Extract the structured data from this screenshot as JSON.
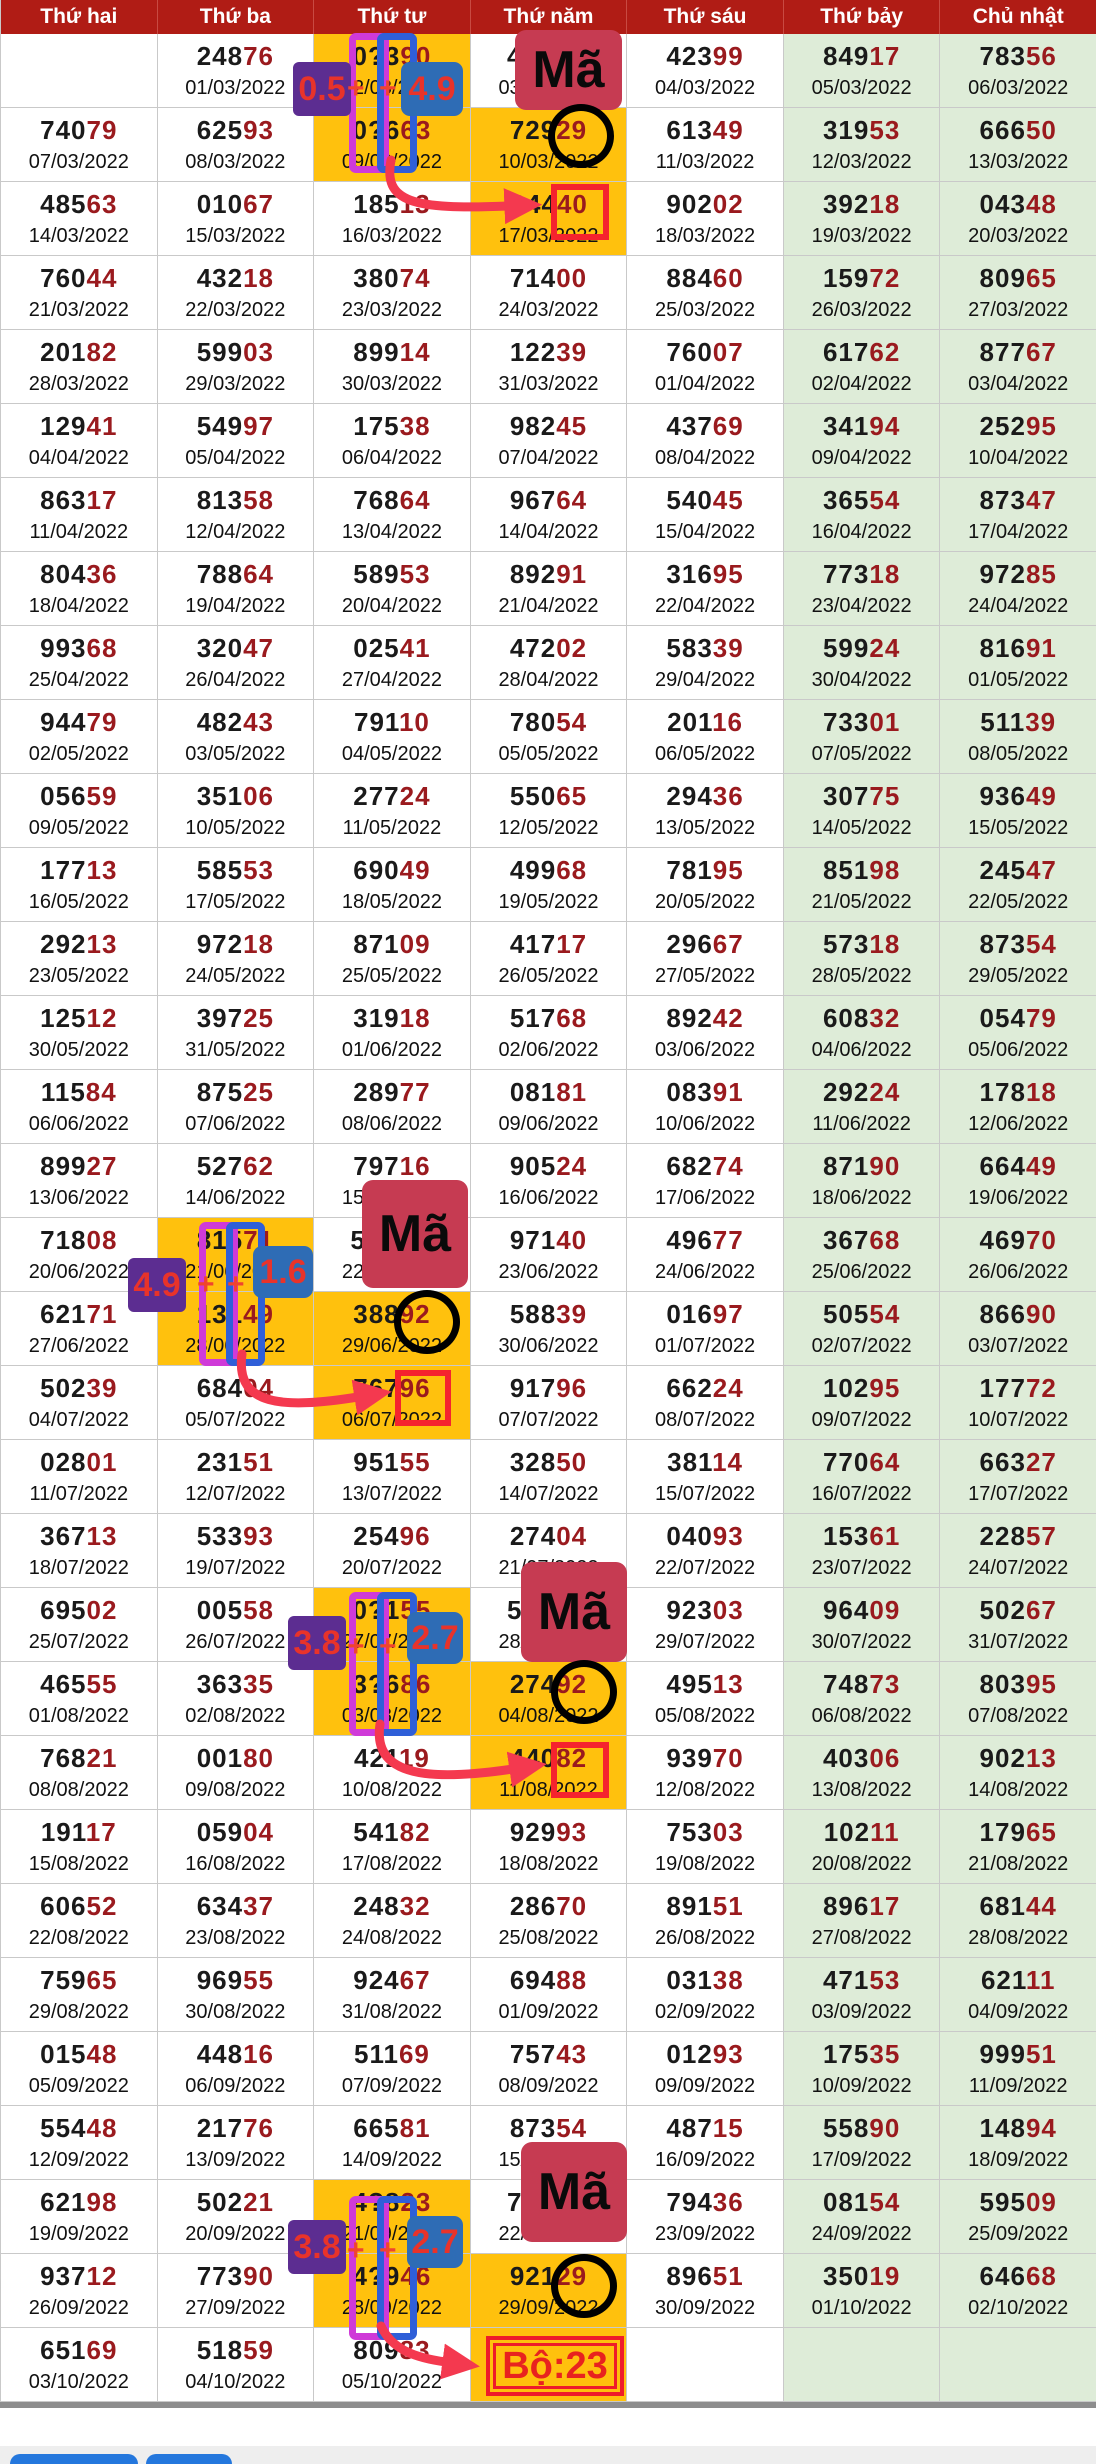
{
  "header": {
    "days": [
      "Thứ hai",
      "Thứ ba",
      "Thứ tư",
      "Thứ năm",
      "Thứ sáu",
      "Thứ bảy",
      "Chủ nhật"
    ]
  },
  "table": {
    "note_unreadable_digit": "?",
    "rows": [
      [
        null,
        [
          "24876",
          "01/03/2022"
        ],
        [
          "0?390",
          "02/03/2022",
          1
        ],
        [
          "4????",
          "03/03/2022"
        ],
        [
          "42399",
          "04/03/2022"
        ],
        [
          "84917",
          "05/03/2022"
        ],
        [
          "78356",
          "06/03/2022"
        ]
      ],
      [
        [
          "74079",
          "07/03/2022"
        ],
        [
          "62593",
          "08/03/2022"
        ],
        [
          "0?663",
          "09/03/2022",
          1
        ],
        [
          "72929",
          "10/03/2022",
          1
        ],
        [
          "61349",
          "11/03/2022"
        ],
        [
          "31953",
          "12/03/2022"
        ],
        [
          "66650",
          "13/03/2022"
        ]
      ],
      [
        [
          "48563",
          "14/03/2022"
        ],
        [
          "01067",
          "15/03/2022"
        ],
        [
          "18513",
          "16/03/2022"
        ],
        [
          "?4440",
          "17/03/2022",
          1
        ],
        [
          "90202",
          "18/03/2022"
        ],
        [
          "39218",
          "19/03/2022"
        ],
        [
          "04348",
          "20/03/2022"
        ]
      ],
      [
        [
          "76044",
          "21/03/2022"
        ],
        [
          "43218",
          "22/03/2022"
        ],
        [
          "38074",
          "23/03/2022"
        ],
        [
          "71400",
          "24/03/2022"
        ],
        [
          "88460",
          "25/03/2022"
        ],
        [
          "15972",
          "26/03/2022"
        ],
        [
          "80965",
          "27/03/2022"
        ]
      ],
      [
        [
          "20182",
          "28/03/2022"
        ],
        [
          "59903",
          "29/03/2022"
        ],
        [
          "89914",
          "30/03/2022"
        ],
        [
          "12239",
          "31/03/2022"
        ],
        [
          "76007",
          "01/04/2022"
        ],
        [
          "61762",
          "02/04/2022"
        ],
        [
          "87767",
          "03/04/2022"
        ]
      ],
      [
        [
          "12941",
          "04/04/2022"
        ],
        [
          "54997",
          "05/04/2022"
        ],
        [
          "17538",
          "06/04/2022"
        ],
        [
          "98245",
          "07/04/2022"
        ],
        [
          "43769",
          "08/04/2022"
        ],
        [
          "34194",
          "09/04/2022"
        ],
        [
          "25295",
          "10/04/2022"
        ]
      ],
      [
        [
          "86317",
          "11/04/2022"
        ],
        [
          "81358",
          "12/04/2022"
        ],
        [
          "76864",
          "13/04/2022"
        ],
        [
          "96764",
          "14/04/2022"
        ],
        [
          "54045",
          "15/04/2022"
        ],
        [
          "36554",
          "16/04/2022"
        ],
        [
          "87347",
          "17/04/2022"
        ]
      ],
      [
        [
          "80436",
          "18/04/2022"
        ],
        [
          "78864",
          "19/04/2022"
        ],
        [
          "58953",
          "20/04/2022"
        ],
        [
          "89291",
          "21/04/2022"
        ],
        [
          "31695",
          "22/04/2022"
        ],
        [
          "77318",
          "23/04/2022"
        ],
        [
          "97285",
          "24/04/2022"
        ]
      ],
      [
        [
          "99368",
          "25/04/2022"
        ],
        [
          "32047",
          "26/04/2022"
        ],
        [
          "02541",
          "27/04/2022"
        ],
        [
          "47202",
          "28/04/2022"
        ],
        [
          "58339",
          "29/04/2022"
        ],
        [
          "59924",
          "30/04/2022"
        ],
        [
          "81691",
          "01/05/2022"
        ]
      ],
      [
        [
          "94479",
          "02/05/2022"
        ],
        [
          "48243",
          "03/05/2022"
        ],
        [
          "79110",
          "04/05/2022"
        ],
        [
          "78054",
          "05/05/2022"
        ],
        [
          "20116",
          "06/05/2022"
        ],
        [
          "73301",
          "07/05/2022"
        ],
        [
          "51139",
          "08/05/2022"
        ]
      ],
      [
        [
          "05659",
          "09/05/2022"
        ],
        [
          "35106",
          "10/05/2022"
        ],
        [
          "27724",
          "11/05/2022"
        ],
        [
          "55065",
          "12/05/2022"
        ],
        [
          "29436",
          "13/05/2022"
        ],
        [
          "30775",
          "14/05/2022"
        ],
        [
          "93649",
          "15/05/2022"
        ]
      ],
      [
        [
          "17713",
          "16/05/2022"
        ],
        [
          "58553",
          "17/05/2022"
        ],
        [
          "69049",
          "18/05/2022"
        ],
        [
          "49968",
          "19/05/2022"
        ],
        [
          "78195",
          "20/05/2022"
        ],
        [
          "85198",
          "21/05/2022"
        ],
        [
          "24547",
          "22/05/2022"
        ]
      ],
      [
        [
          "29213",
          "23/05/2022"
        ],
        [
          "97218",
          "24/05/2022"
        ],
        [
          "87109",
          "25/05/2022"
        ],
        [
          "41717",
          "26/05/2022"
        ],
        [
          "29667",
          "27/05/2022"
        ],
        [
          "57318",
          "28/05/2022"
        ],
        [
          "87354",
          "29/05/2022"
        ]
      ],
      [
        [
          "12512",
          "30/05/2022"
        ],
        [
          "39725",
          "31/05/2022"
        ],
        [
          "31918",
          "01/06/2022"
        ],
        [
          "51768",
          "02/06/2022"
        ],
        [
          "89242",
          "03/06/2022"
        ],
        [
          "60832",
          "04/06/2022"
        ],
        [
          "05479",
          "05/06/2022"
        ]
      ],
      [
        [
          "11584",
          "06/06/2022"
        ],
        [
          "87525",
          "07/06/2022"
        ],
        [
          "28977",
          "08/06/2022"
        ],
        [
          "08181",
          "09/06/2022"
        ],
        [
          "08391",
          "10/06/2022"
        ],
        [
          "29224",
          "11/06/2022"
        ],
        [
          "17818",
          "12/06/2022"
        ]
      ],
      [
        [
          "89927",
          "13/06/2022"
        ],
        [
          "52762",
          "14/06/2022"
        ],
        [
          "79716",
          "15/06/2022"
        ],
        [
          "90524",
          "16/06/2022"
        ],
        [
          "68274",
          "17/06/2022"
        ],
        [
          "87190",
          "18/06/2022"
        ],
        [
          "66449",
          "19/06/2022"
        ]
      ],
      [
        [
          "71808",
          "20/06/2022"
        ],
        [
          "81571",
          "21/06/2022",
          1
        ],
        [
          "5????",
          "22/06/2022"
        ],
        [
          "97140",
          "23/06/2022"
        ],
        [
          "49677",
          "24/06/2022"
        ],
        [
          "36768",
          "25/06/2022"
        ],
        [
          "46970",
          "26/06/2022"
        ]
      ],
      [
        [
          "62171",
          "27/06/2022"
        ],
        [
          "13149",
          "28/06/2022",
          1
        ],
        [
          "38892",
          "29/06/2022",
          1
        ],
        [
          "58839",
          "30/06/2022"
        ],
        [
          "01697",
          "01/07/2022"
        ],
        [
          "50554",
          "02/07/2022"
        ],
        [
          "86690",
          "03/07/2022"
        ]
      ],
      [
        [
          "50239",
          "04/07/2022"
        ],
        [
          "68404",
          "05/07/2022"
        ],
        [
          "76796",
          "06/07/2022",
          1
        ],
        [
          "91796",
          "07/07/2022"
        ],
        [
          "66224",
          "08/07/2022"
        ],
        [
          "10295",
          "09/07/2022"
        ],
        [
          "17772",
          "10/07/2022"
        ]
      ],
      [
        [
          "02801",
          "11/07/2022"
        ],
        [
          "23151",
          "12/07/2022"
        ],
        [
          "95155",
          "13/07/2022"
        ],
        [
          "32850",
          "14/07/2022"
        ],
        [
          "38114",
          "15/07/2022"
        ],
        [
          "77064",
          "16/07/2022"
        ],
        [
          "66327",
          "17/07/2022"
        ]
      ],
      [
        [
          "36713",
          "18/07/2022"
        ],
        [
          "53393",
          "19/07/2022"
        ],
        [
          "25496",
          "20/07/2022"
        ],
        [
          "27404",
          "21/07/2022"
        ],
        [
          "04093",
          "22/07/2022"
        ],
        [
          "15361",
          "23/07/2022"
        ],
        [
          "22857",
          "24/07/2022"
        ]
      ],
      [
        [
          "69502",
          "25/07/2022"
        ],
        [
          "00558",
          "26/07/2022"
        ],
        [
          "0?155",
          "27/07/2022",
          1
        ],
        [
          "5????",
          "28/07/2022"
        ],
        [
          "92303",
          "29/07/2022"
        ],
        [
          "96409",
          "30/07/2022"
        ],
        [
          "50267",
          "31/07/2022"
        ]
      ],
      [
        [
          "46555",
          "01/08/2022"
        ],
        [
          "36335",
          "02/08/2022"
        ],
        [
          "3?686",
          "03/08/2022",
          1
        ],
        [
          "27492",
          "04/08/2022",
          1
        ],
        [
          "49513",
          "05/08/2022"
        ],
        [
          "74873",
          "06/08/2022"
        ],
        [
          "80395",
          "07/08/2022"
        ]
      ],
      [
        [
          "76821",
          "08/08/2022"
        ],
        [
          "00180",
          "09/08/2022"
        ],
        [
          "42119",
          "10/08/2022"
        ],
        [
          "44082",
          "11/08/2022",
          1
        ],
        [
          "93970",
          "12/08/2022"
        ],
        [
          "40306",
          "13/08/2022"
        ],
        [
          "90213",
          "14/08/2022"
        ]
      ],
      [
        [
          "19117",
          "15/08/2022"
        ],
        [
          "05904",
          "16/08/2022"
        ],
        [
          "54182",
          "17/08/2022"
        ],
        [
          "92993",
          "18/08/2022"
        ],
        [
          "75303",
          "19/08/2022"
        ],
        [
          "10211",
          "20/08/2022"
        ],
        [
          "17965",
          "21/08/2022"
        ]
      ],
      [
        [
          "60652",
          "22/08/2022"
        ],
        [
          "63437",
          "23/08/2022"
        ],
        [
          "24832",
          "24/08/2022"
        ],
        [
          "28670",
          "25/08/2022"
        ],
        [
          "89151",
          "26/08/2022"
        ],
        [
          "89617",
          "27/08/2022"
        ],
        [
          "68144",
          "28/08/2022"
        ]
      ],
      [
        [
          "75965",
          "29/08/2022"
        ],
        [
          "96955",
          "30/08/2022"
        ],
        [
          "92467",
          "31/08/2022"
        ],
        [
          "69488",
          "01/09/2022"
        ],
        [
          "03138",
          "02/09/2022"
        ],
        [
          "47153",
          "03/09/2022"
        ],
        [
          "62111",
          "04/09/2022"
        ]
      ],
      [
        [
          "01548",
          "05/09/2022"
        ],
        [
          "44816",
          "06/09/2022"
        ],
        [
          "51169",
          "07/09/2022"
        ],
        [
          "75743",
          "08/09/2022"
        ],
        [
          "01293",
          "09/09/2022"
        ],
        [
          "17535",
          "10/09/2022"
        ],
        [
          "99951",
          "11/09/2022"
        ]
      ],
      [
        [
          "55448",
          "12/09/2022"
        ],
        [
          "21776",
          "13/09/2022"
        ],
        [
          "66581",
          "14/09/2022"
        ],
        [
          "87354",
          "15/09/2022"
        ],
        [
          "48715",
          "16/09/2022"
        ],
        [
          "55890",
          "17/09/2022"
        ],
        [
          "14894",
          "18/09/2022"
        ]
      ],
      [
        [
          "62198",
          "19/09/2022"
        ],
        [
          "50221",
          "20/09/2022"
        ],
        [
          "4?823",
          "21/09/2022",
          1
        ],
        [
          "7????",
          "22/09/2022"
        ],
        [
          "79436",
          "23/09/2022"
        ],
        [
          "08154",
          "24/09/2022"
        ],
        [
          "59509",
          "25/09/2022"
        ]
      ],
      [
        [
          "93712",
          "26/09/2022"
        ],
        [
          "77390",
          "27/09/2022"
        ],
        [
          "4?946",
          "28/09/2022",
          1
        ],
        [
          "92129",
          "29/09/2022",
          1
        ],
        [
          "89651",
          "30/09/2022"
        ],
        [
          "35019",
          "01/10/2022"
        ],
        [
          "64668",
          "02/10/2022"
        ]
      ],
      [
        [
          "65169",
          "03/10/2022"
        ],
        [
          "51859",
          "04/10/2022"
        ],
        [
          "80983",
          "05/10/2022"
        ],
        [
          "",
          "",
          1
        ],
        null,
        null,
        null
      ]
    ]
  },
  "annotations": {
    "ma": "Mã",
    "bo": "Bộ:23",
    "plus": "+",
    "clusters": [
      {
        "purple": "0.5",
        "blue": "4.9"
      },
      {
        "purple": "4.9",
        "blue": "1.6"
      },
      {
        "purple": "3.8",
        "blue": "2.7"
      },
      {
        "purple": "3.8",
        "blue": "2.7"
      }
    ]
  },
  "colors": {
    "header_bg": "#b01c15",
    "highlight_orange": "#ffc10d",
    "weekend_green": "#deecd8",
    "number_black": "#1a1a1a",
    "number_red": "#9a1a1e",
    "badge_purple": "#5c2d91",
    "badge_blue": "#2e6cb5",
    "badge_text_red": "#e8332a",
    "ma_badge": "#c63b52",
    "outline_pink": "#cf3ad8",
    "outline_blue": "#2f5fd8",
    "circle_black": "#000000",
    "box_red": "#f5232e",
    "arrow_red": "#f4394f",
    "footer_button_blue": "#2477dd"
  }
}
